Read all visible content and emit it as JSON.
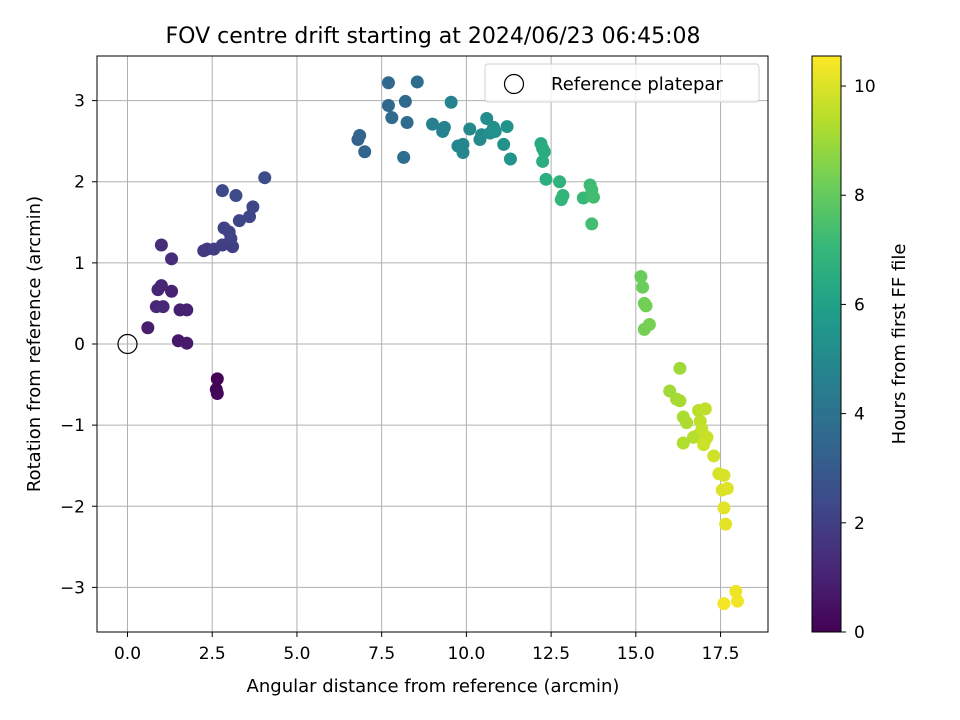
{
  "chart_data": {
    "type": "scatter",
    "title": "FOV centre drift starting at 2024/06/23 06:45:08",
    "xlabel": "Angular distance from reference (arcmin)",
    "ylabel": "Rotation from reference (arcmin)",
    "xlim": [
      -0.9,
      18.9
    ],
    "ylim": [
      -3.55,
      3.55
    ],
    "xticks": [
      0,
      2.5,
      5,
      7.5,
      10,
      12.5,
      15,
      17.5
    ],
    "xtick_labels": [
      "0.0",
      "2.5",
      "5.0",
      "7.5",
      "10.0",
      "12.5",
      "15.0",
      "17.5"
    ],
    "yticks": [
      -3,
      -2,
      -1,
      0,
      1,
      2,
      3
    ],
    "ytick_labels": [
      "−3",
      "−2",
      "−1",
      "0",
      "1",
      "2",
      "3"
    ],
    "grid": true,
    "legend": {
      "position": "top-right",
      "entries": [
        "Reference platepar"
      ]
    },
    "reference_point": {
      "x": 0,
      "y": 0
    },
    "colorbar": {
      "label": "Hours from first FF file",
      "range": [
        0,
        10.55
      ],
      "colormap": "viridis",
      "ticks": [
        0,
        2,
        4,
        6,
        8,
        10
      ],
      "tick_labels": [
        "0",
        "2",
        "4",
        "6",
        "8",
        "10"
      ]
    },
    "series": [
      {
        "points": [
          {
            "x": 2.65,
            "y": -0.43,
            "t": 0.05
          },
          {
            "x": 2.62,
            "y": -0.56,
            "t": 0.1
          },
          {
            "x": 2.65,
            "y": -0.61,
            "t": 0.15
          },
          {
            "x": 1.5,
            "y": 0.04,
            "t": 0.7
          },
          {
            "x": 1.75,
            "y": 0.01,
            "t": 0.75
          },
          {
            "x": 0.6,
            "y": 0.2,
            "t": 0.85
          },
          {
            "x": 1.55,
            "y": 0.42,
            "t": 0.9
          },
          {
            "x": 1.75,
            "y": 0.42,
            "t": 0.95
          },
          {
            "x": 1.3,
            "y": 0.65,
            "t": 1.0
          },
          {
            "x": 0.9,
            "y": 0.67,
            "t": 1.05
          },
          {
            "x": 1.0,
            "y": 0.72,
            "t": 1.1
          },
          {
            "x": 0.85,
            "y": 0.46,
            "t": 1.15
          },
          {
            "x": 1.05,
            "y": 0.46,
            "t": 1.2
          },
          {
            "x": 1.3,
            "y": 1.05,
            "t": 1.3
          },
          {
            "x": 1.0,
            "y": 1.22,
            "t": 1.4
          },
          {
            "x": 2.25,
            "y": 1.15,
            "t": 1.8
          },
          {
            "x": 2.35,
            "y": 1.17,
            "t": 1.85
          },
          {
            "x": 2.55,
            "y": 1.17,
            "t": 1.9
          },
          {
            "x": 2.8,
            "y": 1.22,
            "t": 1.95
          },
          {
            "x": 3.1,
            "y": 1.2,
            "t": 2.0
          },
          {
            "x": 3.05,
            "y": 1.3,
            "t": 2.05
          },
          {
            "x": 2.85,
            "y": 1.43,
            "t": 2.1
          },
          {
            "x": 3.0,
            "y": 1.38,
            "t": 2.15
          },
          {
            "x": 3.3,
            "y": 1.52,
            "t": 2.2
          },
          {
            "x": 3.6,
            "y": 1.57,
            "t": 2.25
          },
          {
            "x": 3.7,
            "y": 1.69,
            "t": 2.3
          },
          {
            "x": 2.8,
            "y": 1.89,
            "t": 2.4
          },
          {
            "x": 3.2,
            "y": 1.83,
            "t": 2.45
          },
          {
            "x": 4.05,
            "y": 2.05,
            "t": 2.5
          },
          {
            "x": 6.8,
            "y": 2.52,
            "t": 3.3
          },
          {
            "x": 6.85,
            "y": 2.57,
            "t": 3.35
          },
          {
            "x": 7.0,
            "y": 2.37,
            "t": 3.4
          },
          {
            "x": 7.7,
            "y": 2.94,
            "t": 3.5
          },
          {
            "x": 7.7,
            "y": 3.22,
            "t": 3.55
          },
          {
            "x": 7.8,
            "y": 2.79,
            "t": 3.6
          },
          {
            "x": 8.2,
            "y": 2.99,
            "t": 3.65
          },
          {
            "x": 8.25,
            "y": 2.73,
            "t": 3.7
          },
          {
            "x": 8.55,
            "y": 3.23,
            "t": 3.75
          },
          {
            "x": 8.15,
            "y": 2.3,
            "t": 3.8
          },
          {
            "x": 9.0,
            "y": 2.71,
            "t": 4.6
          },
          {
            "x": 9.3,
            "y": 2.62,
            "t": 4.65
          },
          {
            "x": 9.35,
            "y": 2.67,
            "t": 4.7
          },
          {
            "x": 9.55,
            "y": 2.98,
            "t": 4.75
          },
          {
            "x": 9.75,
            "y": 2.44,
            "t": 4.8
          },
          {
            "x": 9.9,
            "y": 2.46,
            "t": 4.85
          },
          {
            "x": 9.9,
            "y": 2.36,
            "t": 4.9
          },
          {
            "x": 10.1,
            "y": 2.65,
            "t": 4.95
          },
          {
            "x": 10.4,
            "y": 2.52,
            "t": 5.0
          },
          {
            "x": 10.45,
            "y": 2.58,
            "t": 5.05
          },
          {
            "x": 10.6,
            "y": 2.78,
            "t": 5.1
          },
          {
            "x": 10.7,
            "y": 2.6,
            "t": 5.2
          },
          {
            "x": 10.8,
            "y": 2.67,
            "t": 5.25
          },
          {
            "x": 10.85,
            "y": 2.62,
            "t": 5.3
          },
          {
            "x": 11.1,
            "y": 2.46,
            "t": 5.35
          },
          {
            "x": 11.2,
            "y": 2.68,
            "t": 5.4
          },
          {
            "x": 11.3,
            "y": 2.28,
            "t": 5.5
          },
          {
            "x": 12.2,
            "y": 2.47,
            "t": 6.4
          },
          {
            "x": 12.25,
            "y": 2.41,
            "t": 6.45
          },
          {
            "x": 12.3,
            "y": 2.37,
            "t": 6.5
          },
          {
            "x": 12.25,
            "y": 2.25,
            "t": 6.55
          },
          {
            "x": 12.35,
            "y": 2.03,
            "t": 6.6
          },
          {
            "x": 12.75,
            "y": 2.0,
            "t": 6.8
          },
          {
            "x": 12.8,
            "y": 1.78,
            "t": 6.9
          },
          {
            "x": 12.85,
            "y": 1.83,
            "t": 6.95
          },
          {
            "x": 13.45,
            "y": 1.8,
            "t": 7.1
          },
          {
            "x": 13.65,
            "y": 1.96,
            "t": 7.2
          },
          {
            "x": 13.7,
            "y": 1.9,
            "t": 7.25
          },
          {
            "x": 13.75,
            "y": 1.81,
            "t": 7.3
          },
          {
            "x": 13.7,
            "y": 1.48,
            "t": 7.35
          },
          {
            "x": 15.15,
            "y": 0.83,
            "t": 8.1
          },
          {
            "x": 15.2,
            "y": 0.7,
            "t": 8.15
          },
          {
            "x": 15.25,
            "y": 0.5,
            "t": 8.2
          },
          {
            "x": 15.3,
            "y": 0.47,
            "t": 8.25
          },
          {
            "x": 15.25,
            "y": 0.18,
            "t": 8.3
          },
          {
            "x": 15.4,
            "y": 0.24,
            "t": 8.35
          },
          {
            "x": 16.3,
            "y": -0.3,
            "t": 9.0
          },
          {
            "x": 16.0,
            "y": -0.58,
            "t": 9.05
          },
          {
            "x": 16.2,
            "y": -0.68,
            "t": 9.1
          },
          {
            "x": 16.3,
            "y": -0.7,
            "t": 9.15
          },
          {
            "x": 16.4,
            "y": -0.9,
            "t": 9.2
          },
          {
            "x": 16.5,
            "y": -0.97,
            "t": 9.25
          },
          {
            "x": 16.4,
            "y": -1.22,
            "t": 9.3
          },
          {
            "x": 16.7,
            "y": -1.15,
            "t": 9.35
          },
          {
            "x": 16.85,
            "y": -1.12,
            "t": 9.4
          },
          {
            "x": 16.85,
            "y": -0.82,
            "t": 9.45
          },
          {
            "x": 16.9,
            "y": -0.95,
            "t": 9.5
          },
          {
            "x": 17.05,
            "y": -0.8,
            "t": 9.55
          },
          {
            "x": 16.95,
            "y": -1.05,
            "t": 9.6
          },
          {
            "x": 17.05,
            "y": -1.18,
            "t": 9.65
          },
          {
            "x": 17.1,
            "y": -1.15,
            "t": 9.7
          },
          {
            "x": 17.0,
            "y": -1.24,
            "t": 9.75
          },
          {
            "x": 17.3,
            "y": -1.38,
            "t": 9.8
          },
          {
            "x": 17.45,
            "y": -1.6,
            "t": 9.9
          },
          {
            "x": 17.6,
            "y": -1.62,
            "t": 9.95
          },
          {
            "x": 17.55,
            "y": -1.8,
            "t": 10.0
          },
          {
            "x": 17.7,
            "y": -1.78,
            "t": 10.05
          },
          {
            "x": 17.6,
            "y": -2.02,
            "t": 10.1
          },
          {
            "x": 17.65,
            "y": -2.22,
            "t": 10.15
          },
          {
            "x": 17.95,
            "y": -3.05,
            "t": 10.3
          },
          {
            "x": 18.0,
            "y": -3.17,
            "t": 10.35
          },
          {
            "x": 17.6,
            "y": -3.2,
            "t": 10.4
          }
        ]
      }
    ]
  }
}
